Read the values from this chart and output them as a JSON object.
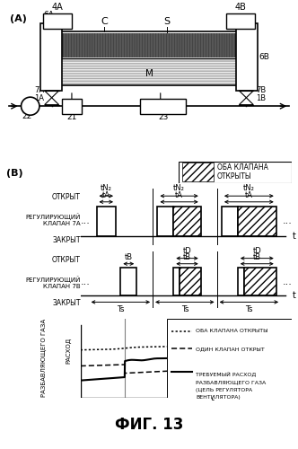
{
  "title": "ФИГ. 13",
  "panel_A_label": "(A)",
  "panel_B_label": "(B)",
  "legend_box_label": "ОБА КЛАПАНА\nОТКРЫТЫ",
  "valve7A_label": "РЕГУЛИРУЮЩИЙ\nКЛАПАН 7А",
  "valve7B_label": "РЕГУЛИРУЮЩИЙ\nКЛАПАН 7В",
  "open_label": "ОТКРЫТ",
  "closed_label": "ЗАКРЫТ",
  "Ts_label": "Ts",
  "tN2_label": "tN₂",
  "tA_label": "tA",
  "tB_label": "tB",
  "tD_label": "tD",
  "flow_ylabel1": "РАСХОД",
  "flow_ylabel2": "РАЗБАВЛЯЮЩЕГО ГАЗА",
  "flow_ylabel3": "РАЗБАВЛЯЮЩЕГО",
  "flow_ylabel4": "ГАЗА",
  "legend_dotted": "ОБА КЛАПАНА ОТКРЫТЫ",
  "legend_dashed": "ОДИН КЛАПАН ОТКРЫТ",
  "legend_solid_1": "ТРЕБУЕМЫЙ РАСХОД",
  "legend_solid_2": "РАЗБАВЛЯЮЩЕГО ГАЗА",
  "legend_solid_3": "(ЦЕЛЬ РЕГУЛЯТОРА",
  "legend_solid_4": "ВЕНТИЛЯТОРА)",
  "bg_color": "#ffffff"
}
